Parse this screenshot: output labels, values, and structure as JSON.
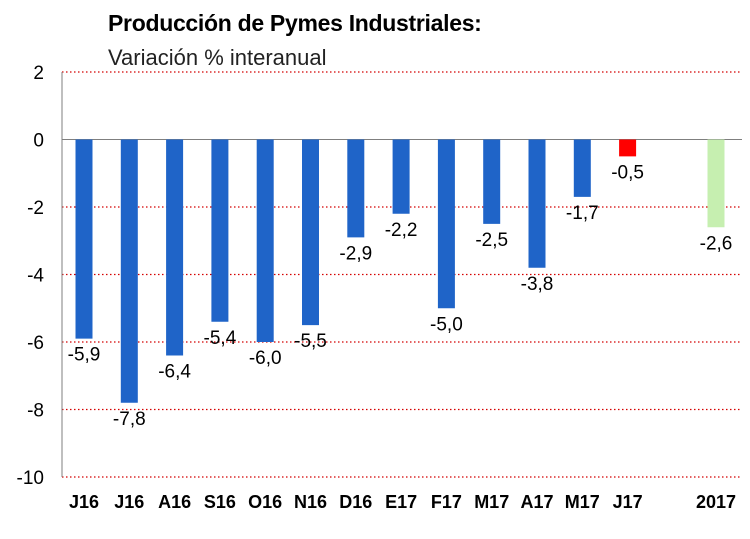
{
  "chart_data": {
    "type": "bar",
    "title": "Producción de Pymes Industriales:",
    "subtitle": "Variación % interanual",
    "categories": [
      "J16",
      "J16",
      "A16",
      "S16",
      "O16",
      "N16",
      "D16",
      "E17",
      "F17",
      "M17",
      "A17",
      "M17",
      "J17",
      "2017"
    ],
    "values": [
      -5.9,
      -7.8,
      -6.4,
      -5.4,
      -6.0,
      -5.5,
      -2.9,
      -2.2,
      -5.0,
      -2.5,
      -3.8,
      -1.7,
      -0.5,
      -2.6
    ],
    "labels": [
      "-5,9",
      "-7,8",
      "-6,4",
      "-5,4",
      "-6,0",
      "-5,5",
      "-2,9",
      "-2,2",
      "-5,0",
      "-2,5",
      "-3,8",
      "-1,7",
      "-0,5",
      "-2,6"
    ],
    "colors": [
      "#1f64c8",
      "#1f64c8",
      "#1f64c8",
      "#1f64c8",
      "#1f64c8",
      "#1f64c8",
      "#1f64c8",
      "#1f64c8",
      "#1f64c8",
      "#1f64c8",
      "#1f64c8",
      "#1f64c8",
      "#ff0000",
      "#c6efb0"
    ],
    "ylim": [
      -10,
      2
    ],
    "yticks": [
      2,
      0,
      -2,
      -4,
      -6,
      -8,
      -10
    ],
    "ytick_labels": [
      "2",
      "0",
      "-2",
      "-4",
      "-6",
      "-8",
      "-10"
    ],
    "grid": true,
    "gridline_color": "#d40000"
  }
}
